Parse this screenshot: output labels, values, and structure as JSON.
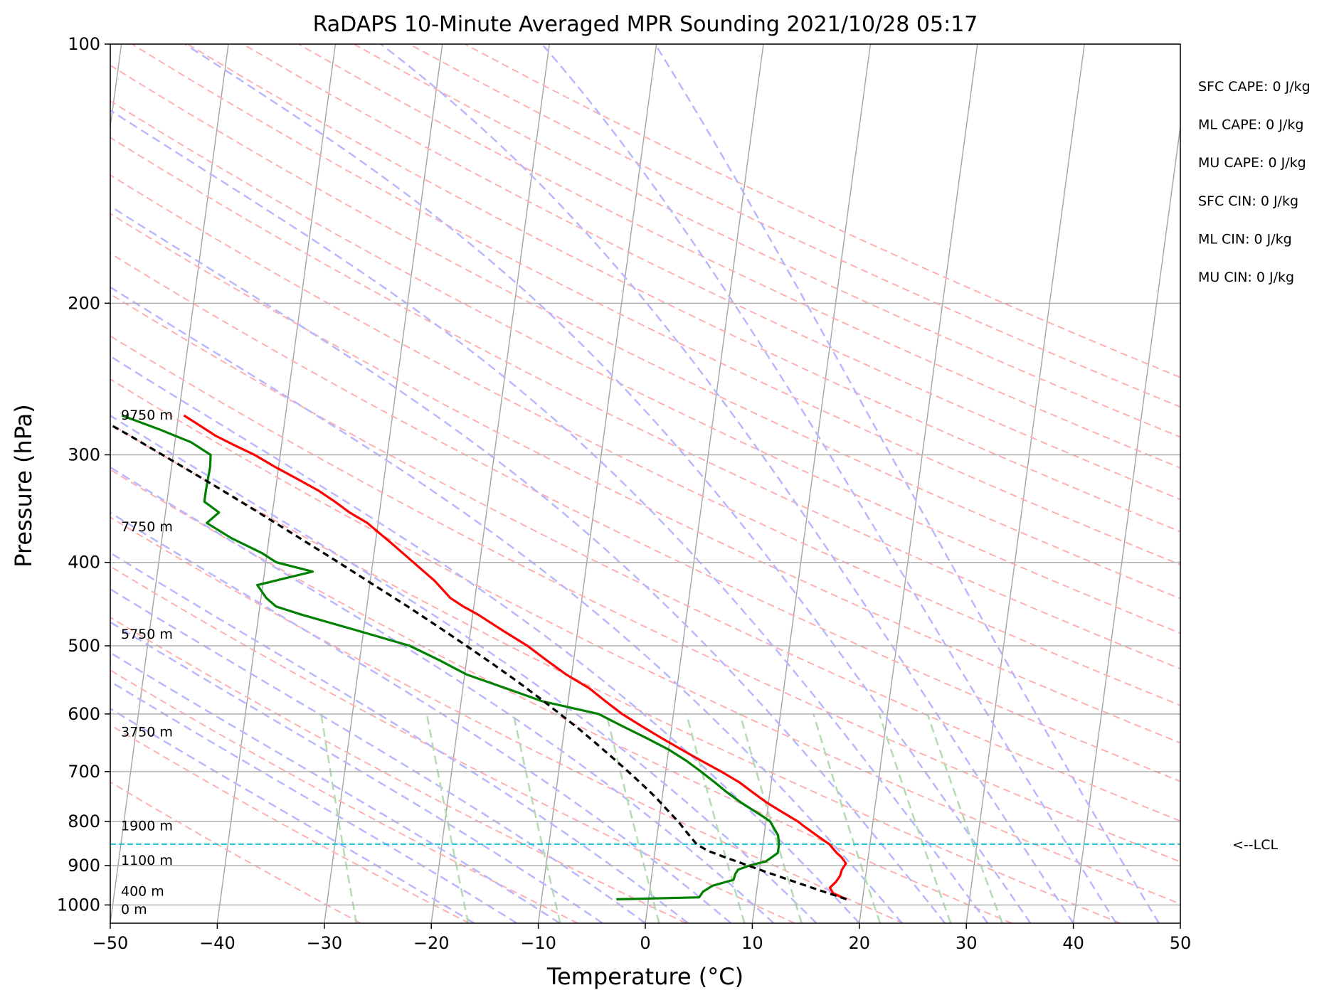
{
  "chart_data": {
    "type": "line",
    "title": "RaDAPS 10-Minute Averaged MPR Sounding 2021/10/28 05:17",
    "xlabel": "Temperature (°C)",
    "ylabel": "Pressure (hPa)",
    "xlim": [
      -50,
      50
    ],
    "ylim": [
      1050,
      100
    ],
    "y_scale": "log",
    "x_ticks": [
      -50,
      -40,
      -30,
      -20,
      -10,
      0,
      10,
      20,
      30,
      40,
      50
    ],
    "x_tick_labels": [
      "−50",
      "−40",
      "−30",
      "−20",
      "−10",
      "0",
      "10",
      "20",
      "30",
      "40",
      "50"
    ],
    "y_ticks": [
      100,
      200,
      300,
      400,
      500,
      600,
      700,
      800,
      900,
      1000
    ],
    "y_tick_labels": [
      "100",
      "200",
      "300",
      "400",
      "500",
      "600",
      "700",
      "800",
      "900",
      "1000"
    ],
    "grid": true,
    "series": [
      {
        "role": "temperature",
        "color": "#ff0000",
        "p": [
          985,
          970,
          955,
          940,
          925,
          910,
          895,
          880,
          870,
          850,
          830,
          810,
          800,
          780,
          760,
          740,
          720,
          700,
          680,
          660,
          640,
          620,
          600,
          580,
          560,
          540,
          520,
          500,
          480,
          460,
          450,
          440,
          420,
          400,
          380,
          360,
          350,
          340,
          330,
          320,
          310,
          300,
          292,
          285,
          275,
          270
        ],
        "t": [
          18.5,
          17.2,
          16.8,
          17.3,
          17.6,
          17.7,
          18.0,
          17.5,
          17.0,
          16.2,
          14.9,
          13.6,
          13.0,
          11.4,
          9.8,
          8.4,
          7.0,
          5.2,
          3.2,
          1.2,
          -0.8,
          -2.8,
          -4.8,
          -6.5,
          -8.2,
          -10.5,
          -12.5,
          -14.5,
          -17.0,
          -19.5,
          -21.0,
          -22.3,
          -24.0,
          -26.2,
          -28.5,
          -31.0,
          -32.8,
          -34.3,
          -36.0,
          -38.1,
          -40.3,
          -42.4,
          -44.5,
          -46.3,
          -48.4,
          -49.5
        ]
      },
      {
        "role": "dewpoint",
        "color": "#008000",
        "p": [
          985,
          980,
          965,
          950,
          935,
          920,
          910,
          900,
          890,
          880,
          870,
          860,
          850,
          830,
          810,
          800,
          790,
          760,
          740,
          720,
          700,
          680,
          660,
          640,
          620,
          600,
          580,
          560,
          540,
          520,
          500,
          480,
          460,
          450,
          440,
          425,
          410,
          400,
          390,
          375,
          360,
          350,
          340,
          330,
          310,
          300,
          290,
          280,
          270
        ],
        "td": [
          -3.0,
          4.7,
          5.0,
          5.8,
          7.7,
          7.8,
          8.0,
          9.0,
          10.5,
          11.0,
          11.5,
          11.5,
          11.5,
          11.3,
          10.7,
          10.4,
          9.7,
          7.4,
          6.0,
          4.7,
          3.3,
          1.8,
          0.0,
          -2.2,
          -4.6,
          -7.0,
          -12.4,
          -16.0,
          -19.8,
          -22.5,
          -25.5,
          -30.6,
          -36.0,
          -38.5,
          -39.5,
          -40.5,
          -35.5,
          -39.0,
          -40.5,
          -43.5,
          -46.0,
          -45.0,
          -46.5,
          -46.5,
          -46.4,
          -46.5,
          -48.5,
          -51.7,
          -55.3
        ]
      },
      {
        "role": "parcel",
        "color": "#000000",
        "p": [
          985,
          975,
          960,
          945,
          930,
          915,
          900,
          880,
          865,
          850,
          825,
          800,
          775,
          750,
          725,
          700,
          675,
          650,
          625,
          600,
          575,
          550,
          525,
          500,
          475,
          450,
          425,
          400,
          375,
          350,
          325,
          300,
          285,
          270
        ],
        "t": [
          18.5,
          17.4,
          15.7,
          14.0,
          12.3,
          10.6,
          8.9,
          6.6,
          4.9,
          3.8,
          2.8,
          1.8,
          0.6,
          -0.6,
          -2.0,
          -3.5,
          -5.1,
          -6.8,
          -8.6,
          -10.6,
          -12.7,
          -15.0,
          -17.5,
          -20.2,
          -23.1,
          -26.2,
          -29.6,
          -33.2,
          -37.1,
          -41.3,
          -45.9,
          -51.0,
          -54.3,
          -57.9
        ]
      }
    ],
    "lcl_pressure": 850,
    "lcl_label": "<--LCL",
    "height_labels": [
      {
        "text": "0 m",
        "p": 1013
      },
      {
        "text": "400 m",
        "p": 965
      },
      {
        "text": "1100 m",
        "p": 888
      },
      {
        "text": "1900 m",
        "p": 810
      },
      {
        "text": "3750 m",
        "p": 630
      },
      {
        "text": "5750 m",
        "p": 485
      },
      {
        "text": "7750 m",
        "p": 364
      },
      {
        "text": "9750 m",
        "p": 270
      }
    ],
    "annotations": [
      "SFC CAPE: 0 J/kg",
      "ML CAPE: 0 J/kg",
      "MU CAPE: 0 J/kg",
      "SFC CIN: 0 J/kg",
      "ML CIN: 0 J/kg",
      "MU CIN: 0 J/kg"
    ],
    "background_lines": {
      "isotherms_skew": "gray solid",
      "dry_adiabats": "red dashed",
      "moist_adiabats": "blue dashed",
      "mixing_ratio": "green dashed"
    }
  }
}
